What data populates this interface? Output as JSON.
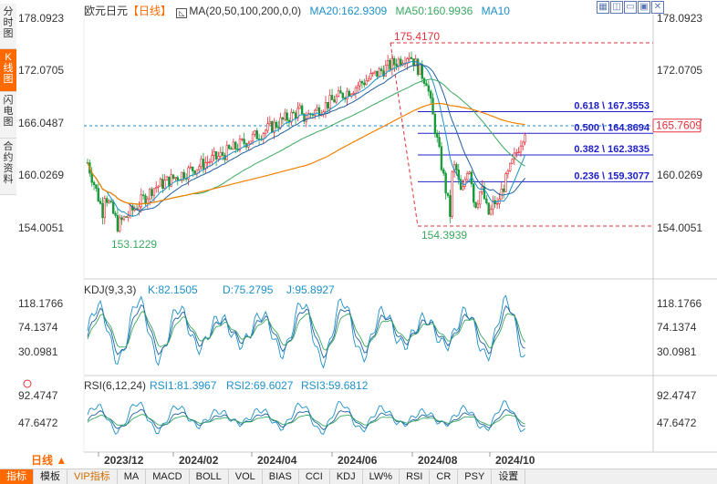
{
  "side_tabs": [
    {
      "label": "分时图",
      "active": false
    },
    {
      "label": "K线图",
      "active": true
    },
    {
      "label": "闪电图",
      "active": false
    },
    {
      "label": "合约资料",
      "active": false
    }
  ],
  "header": {
    "symbol": "欧元日元",
    "period_tag": "【日线】",
    "ma_label": "MA(20,50,100,200,0,0)",
    "ma20": "MA20:162.9309",
    "ma50": "MA50:160.9936",
    "ma10": "MA10"
  },
  "window_icons": [
    "grid-icon",
    "tile-icon",
    "minimize-icon",
    "maximize-icon",
    "close-icon"
  ],
  "main_axis": [
    "178.0923",
    "172.0705",
    "166.0487",
    "160.0269",
    "154.0051"
  ],
  "current_price": "165.7609",
  "high_label": "175.4170",
  "low_labels": [
    "153.1229",
    "154.3939"
  ],
  "fib_levels": [
    {
      "label": "0.618 \\ 167.3553",
      "value": 167.3553
    },
    {
      "label": "0.500 \\ 164.8694",
      "value": 164.8694
    },
    {
      "label": "0.382 \\ 162.3835",
      "value": 162.3835
    },
    {
      "label": "0.236 \\ 159.3077",
      "value": 159.3077
    }
  ],
  "kdj": {
    "title": "KDJ(9,3,3)",
    "k": "K:82.1505",
    "d": "D:75.2795",
    "j": "J:95.8927",
    "axis": [
      "118.1766",
      "74.1374",
      "30.0981"
    ]
  },
  "rsi": {
    "title": "RSI(6,12,24)",
    "rsi1": "RSI1:81.3967",
    "rsi2": "RSI2:69.6027",
    "rsi3": "RSI3:59.6812",
    "axis": [
      "92.4747",
      "47.6472"
    ]
  },
  "date_axis": [
    "2023/12",
    "2024/02",
    "2024/04",
    "2024/06",
    "2024/08",
    "2024/10"
  ],
  "period_selector": "日线",
  "toolbar": [
    {
      "label": "指标",
      "style": "sel"
    },
    {
      "label": "模板",
      "style": ""
    },
    {
      "label": "VIP指标",
      "style": "vip"
    },
    {
      "label": "MA",
      "style": ""
    },
    {
      "label": "MACD",
      "style": ""
    },
    {
      "label": "BOLL",
      "style": ""
    },
    {
      "label": "VOL",
      "style": ""
    },
    {
      "label": "BIAS",
      "style": ""
    },
    {
      "label": "CCI",
      "style": ""
    },
    {
      "label": "KDJ",
      "style": ""
    },
    {
      "label": "LW%",
      "style": ""
    },
    {
      "label": "RSI",
      "style": ""
    },
    {
      "label": "CR",
      "style": ""
    },
    {
      "label": "PSY",
      "style": ""
    },
    {
      "label": "设置",
      "style": ""
    }
  ],
  "colors": {
    "up": "#e0303a",
    "down": "#1a9a3a",
    "fib": "#2020c8",
    "ma1": "#1e90c8",
    "ma2": "#3aa860",
    "ma3": "#2060a0",
    "ma4": "#f08000",
    "accent": "#ff6a00"
  }
}
